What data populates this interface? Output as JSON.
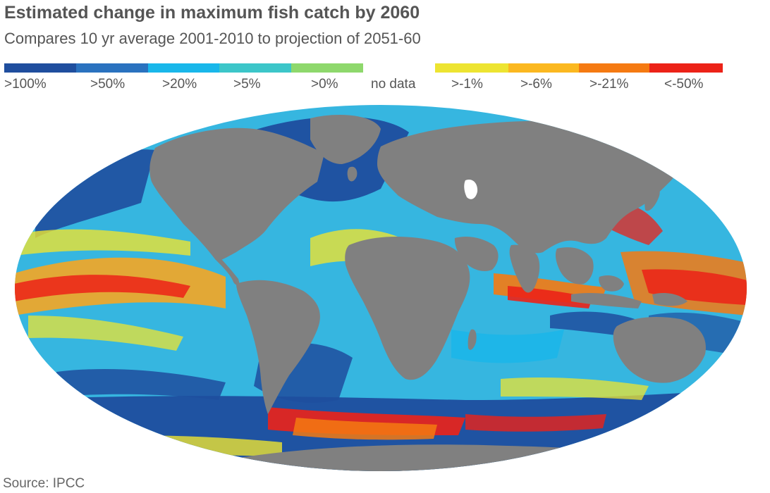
{
  "header": {
    "title": "Estimated change in maximum fish catch by 2060",
    "subtitle": "Compares 10 yr average 2001-2010 to projection of 2051-60"
  },
  "legend": {
    "items": [
      {
        "label": ">100%",
        "color": "#1f4e9e"
      },
      {
        "label": ">50%",
        "color": "#2a72bf"
      },
      {
        "label": ">20%",
        "color": "#19b7ea"
      },
      {
        "label": ">5%",
        "color": "#3cc6c9"
      },
      {
        "label": ">0%",
        "color": "#8ed86c"
      },
      {
        "label": "no data",
        "color": "#ffffff"
      },
      {
        "label": ">-1%",
        "color": "#ede431"
      },
      {
        "label": ">-6%",
        "color": "#fbb820"
      },
      {
        "label": ">-21%",
        "color": "#f57a12"
      },
      {
        "label": "<-50%",
        "color": "#ec2218"
      }
    ]
  },
  "map": {
    "land_color": "#808080",
    "ocean_base_color": "#36b6e0"
  },
  "footer": {
    "source": "Source: IPCC"
  }
}
